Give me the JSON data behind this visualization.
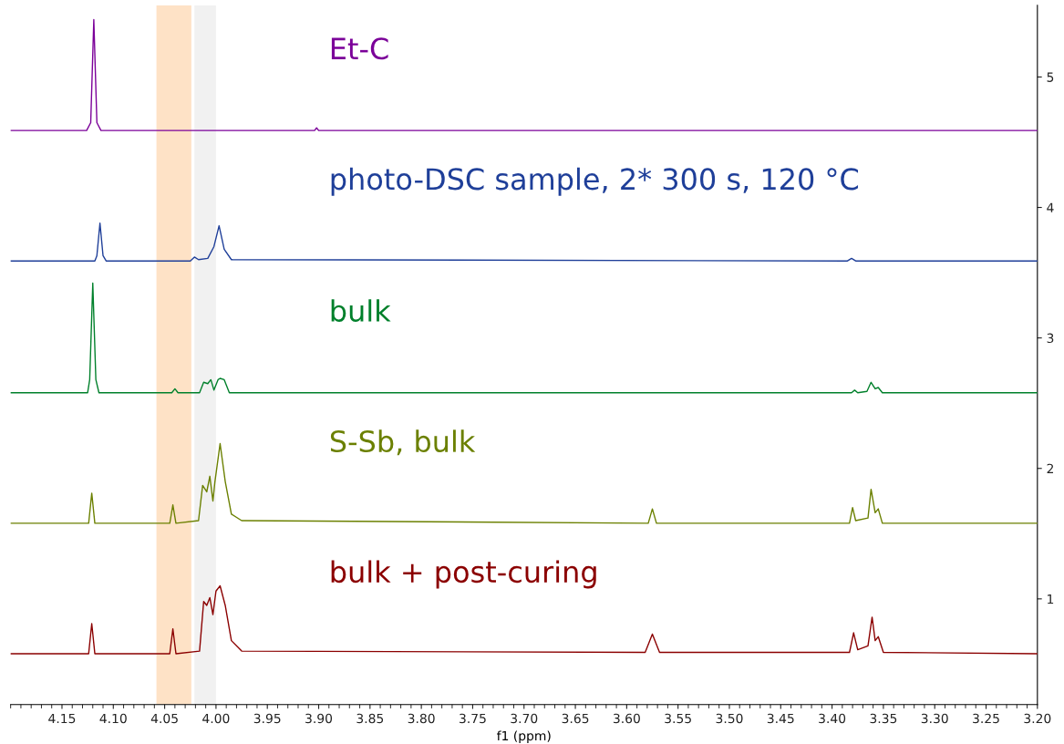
{
  "chart_data": {
    "type": "line",
    "xlabel": "f1 (ppm)",
    "xlim": [
      4.2,
      3.2
    ],
    "xticks": [
      4.15,
      {
        "value": 4.1,
        "label": "4.10"
      },
      4.05,
      {
        "value": 4.0,
        "label": "4.00"
      },
      3.95,
      {
        "value": 3.9,
        "label": "3.90"
      },
      3.85,
      {
        "value": 3.8,
        "label": "3.80"
      },
      3.75,
      {
        "value": 3.7,
        "label": "3.70"
      },
      3.65,
      {
        "value": 3.6,
        "label": "3.60"
      },
      3.55,
      {
        "value": 3.5,
        "label": "3.50"
      },
      3.45,
      {
        "value": 3.4,
        "label": "3.40"
      },
      3.35,
      {
        "value": 3.3,
        "label": "3.30"
      },
      3.25,
      {
        "value": 3.2,
        "label": "3.20"
      }
    ],
    "ylim": [
      0.19,
      5.55
    ],
    "yticks": [
      1,
      2,
      3,
      4,
      5
    ],
    "grid": false,
    "legend": false,
    "marker": "none",
    "line_style": "solid",
    "bands": [
      {
        "axis": "x",
        "from": 4.058,
        "to": 4.024,
        "color": "#fdbf80"
      },
      {
        "axis": "x",
        "from": 4.021,
        "to": 4.0,
        "color": "#e0e0e0"
      }
    ],
    "series": [
      {
        "name": "Et-C",
        "color": "#7b0099",
        "x": [
          4.2,
          4.126,
          4.122,
          4.119,
          4.116,
          4.112,
          3.904,
          3.902,
          3.9,
          3.2
        ],
        "values": [
          4.59,
          4.59,
          4.65,
          5.44,
          4.65,
          4.59,
          4.59,
          4.61,
          4.59,
          4.59
        ]
      },
      {
        "name": "photo-DSC sample, 2* 300 s, 120 °C",
        "color": "#1f3f99",
        "x": [
          4.2,
          4.118,
          4.116,
          4.113,
          4.11,
          4.107,
          4.025,
          4.021,
          4.017,
          4.008,
          4.002,
          3.997,
          3.992,
          3.985,
          3.385,
          3.381,
          3.377,
          3.2
        ],
        "values": [
          3.59,
          3.59,
          3.63,
          3.88,
          3.63,
          3.59,
          3.59,
          3.62,
          3.6,
          3.61,
          3.7,
          3.86,
          3.68,
          3.6,
          3.59,
          3.61,
          3.59,
          3.59
        ]
      },
      {
        "name": "bulk",
        "color": "#00802b",
        "x": [
          4.2,
          4.125,
          4.123,
          4.12,
          4.117,
          4.114,
          4.043,
          4.04,
          4.037,
          4.016,
          4.012,
          4.008,
          4.005,
          4.002,
          3.998,
          3.996,
          3.992,
          3.987,
          3.381,
          3.378,
          3.375,
          3.366,
          3.362,
          3.358,
          3.355,
          3.351,
          3.2
        ],
        "values": [
          2.58,
          2.58,
          2.68,
          3.42,
          2.68,
          2.58,
          2.58,
          2.61,
          2.58,
          2.58,
          2.66,
          2.65,
          2.68,
          2.6,
          2.68,
          2.69,
          2.68,
          2.58,
          2.58,
          2.6,
          2.58,
          2.59,
          2.66,
          2.61,
          2.62,
          2.58,
          2.58
        ]
      },
      {
        "name": "S-Sb, bulk",
        "color": "#6b8000",
        "x": [
          4.2,
          4.124,
          4.121,
          4.118,
          4.045,
          4.042,
          4.039,
          4.017,
          4.013,
          4.009,
          4.006,
          4.003,
          4.001,
          3.996,
          3.991,
          3.985,
          3.975,
          3.579,
          3.575,
          3.571,
          3.383,
          3.38,
          3.377,
          3.365,
          3.362,
          3.358,
          3.355,
          3.351,
          3.2
        ],
        "values": [
          1.58,
          1.58,
          1.81,
          1.58,
          1.58,
          1.72,
          1.58,
          1.6,
          1.87,
          1.82,
          1.94,
          1.75,
          1.9,
          2.19,
          1.9,
          1.65,
          1.6,
          1.58,
          1.69,
          1.58,
          1.58,
          1.7,
          1.6,
          1.62,
          1.84,
          1.66,
          1.69,
          1.58,
          1.58
        ]
      },
      {
        "name": "bulk + post-curing",
        "color": "#8b0000",
        "x": [
          4.2,
          4.124,
          4.121,
          4.118,
          4.045,
          4.042,
          4.039,
          4.016,
          4.012,
          4.009,
          4.006,
          4.003,
          4.0,
          3.996,
          3.991,
          3.985,
          3.975,
          3.582,
          3.575,
          3.568,
          3.383,
          3.379,
          3.375,
          3.365,
          3.361,
          3.358,
          3.355,
          3.35,
          3.2
        ],
        "values": [
          0.58,
          0.58,
          0.81,
          0.58,
          0.58,
          0.77,
          0.58,
          0.6,
          0.98,
          0.95,
          1.01,
          0.88,
          1.06,
          1.1,
          0.95,
          0.68,
          0.6,
          0.59,
          0.73,
          0.59,
          0.59,
          0.74,
          0.61,
          0.64,
          0.86,
          0.68,
          0.71,
          0.59,
          0.58
        ]
      }
    ]
  }
}
